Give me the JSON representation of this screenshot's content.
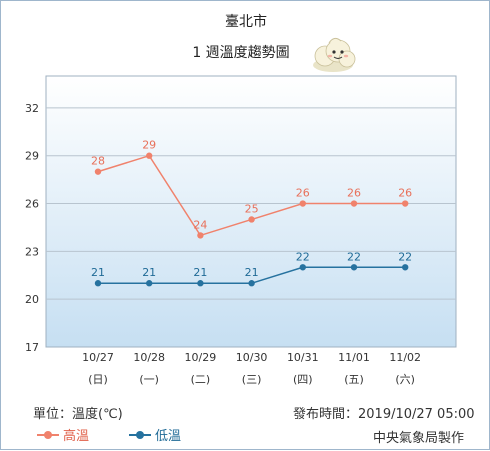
{
  "header": {
    "city": "臺北市",
    "subtitle": "1 週溫度趨勢圖"
  },
  "colors": {
    "high": "#f0826c",
    "low": "#26729f",
    "plot_top": "#ffffff",
    "plot_bottom": "#c6dff2",
    "grid": "#b8c4cf"
  },
  "chart_data": {
    "type": "line",
    "categories": [
      "10/27",
      "10/28",
      "10/29",
      "10/30",
      "10/31",
      "11/01",
      "11/02"
    ],
    "weekdays": [
      "(日)",
      "(一)",
      "(二)",
      "(三)",
      "(四)",
      "(五)",
      "(六)"
    ],
    "series": [
      {
        "name": "高溫",
        "values": [
          28,
          29,
          24,
          25,
          26,
          26,
          26
        ]
      },
      {
        "name": "低溫",
        "values": [
          21,
          21,
          21,
          21,
          22,
          22,
          22
        ]
      }
    ],
    "yticks": [
      17,
      20,
      23,
      26,
      29,
      32
    ],
    "ylim": [
      17,
      34
    ],
    "grid": true,
    "legend_position": "bottom-left"
  },
  "footer": {
    "unit": "單位：溫度(℃)",
    "issued": "發布時間：2019/10/27 05:00",
    "source": "中央氣象局製作"
  },
  "mascot_icon": "cloud-mascot-icon"
}
